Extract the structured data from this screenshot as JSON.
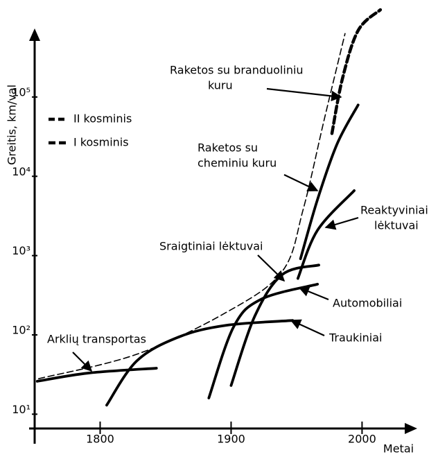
{
  "chart_data": {
    "type": "line",
    "xlabel": "Metai",
    "ylabel": "Greitis, km/val",
    "xlim": [
      1750,
      2040
    ],
    "ylim": [
      6.6,
      676000
    ],
    "log_y": true,
    "xticks": [
      1800,
      1900,
      2000
    ],
    "yticks": [
      {
        "value": 10,
        "label": "10¹"
      },
      {
        "value": 100,
        "label": "10²"
      },
      {
        "value": 1000,
        "label": "10³"
      },
      {
        "value": 10000,
        "label": "10⁴"
      },
      {
        "value": 100000,
        "label": "10⁵"
      }
    ],
    "series": [
      {
        "name": "II kosminis",
        "color": "#000000",
        "style": "dashed-thin",
        "x": [
          1753,
          1828,
          1896,
          1939,
          1955,
          1971,
          1987
        ],
        "values": [
          28,
          57,
          191,
          630,
          3800,
          51000,
          631000
        ]
      },
      {
        "name": "I kosminis",
        "color": "#000000",
        "style": "dashed-thick",
        "x": [
          1977,
          1985,
          1997,
          2014
        ],
        "values": [
          34700,
          170000,
          690000,
          1260000
        ]
      },
      {
        "color": "#000000",
        "style": "solid",
        "x": [
          1752,
          1791,
          1843
        ],
        "values": [
          26,
          33,
          38
        ]
      },
      {
        "color": "#000000",
        "style": "solid",
        "x": [
          1805,
          1828,
          1860,
          1896,
          1947
        ],
        "values": [
          13,
          47,
          94,
          132,
          152
        ]
      },
      {
        "color": "#000000",
        "style": "solid",
        "x": [
          1883,
          1902,
          1923,
          1966
        ],
        "values": [
          16,
          127,
          282,
          436
        ]
      },
      {
        "color": "#000000",
        "style": "solid",
        "x": [
          1900,
          1918,
          1939,
          1967
        ],
        "values": [
          23,
          171,
          575,
          760
        ]
      },
      {
        "color": "#000000",
        "style": "solid",
        "x": [
          1951,
          1966,
          1994
        ],
        "values": [
          515,
          2090,
          6600
        ]
      },
      {
        "color": "#000000",
        "style": "solid",
        "x": [
          1953,
          1966,
          1981,
          1997
        ],
        "values": [
          912,
          5100,
          25700,
          79400
        ]
      }
    ],
    "annotations": [
      {
        "lines": [
          "Raketos su branduoliniu",
          "kuru"
        ]
      },
      {
        "lines": [
          "Raketos su",
          "cheminiu kuru"
        ]
      },
      {
        "lines": [
          "Reaktyviniai",
          "lėktuvai"
        ]
      },
      {
        "lines": [
          "Sraigtiniai lėktuvai"
        ]
      },
      {
        "lines": [
          "Automobiliai"
        ]
      },
      {
        "lines": [
          "Traukiniai"
        ]
      },
      {
        "lines": [
          "Arklių transportas"
        ]
      }
    ]
  }
}
